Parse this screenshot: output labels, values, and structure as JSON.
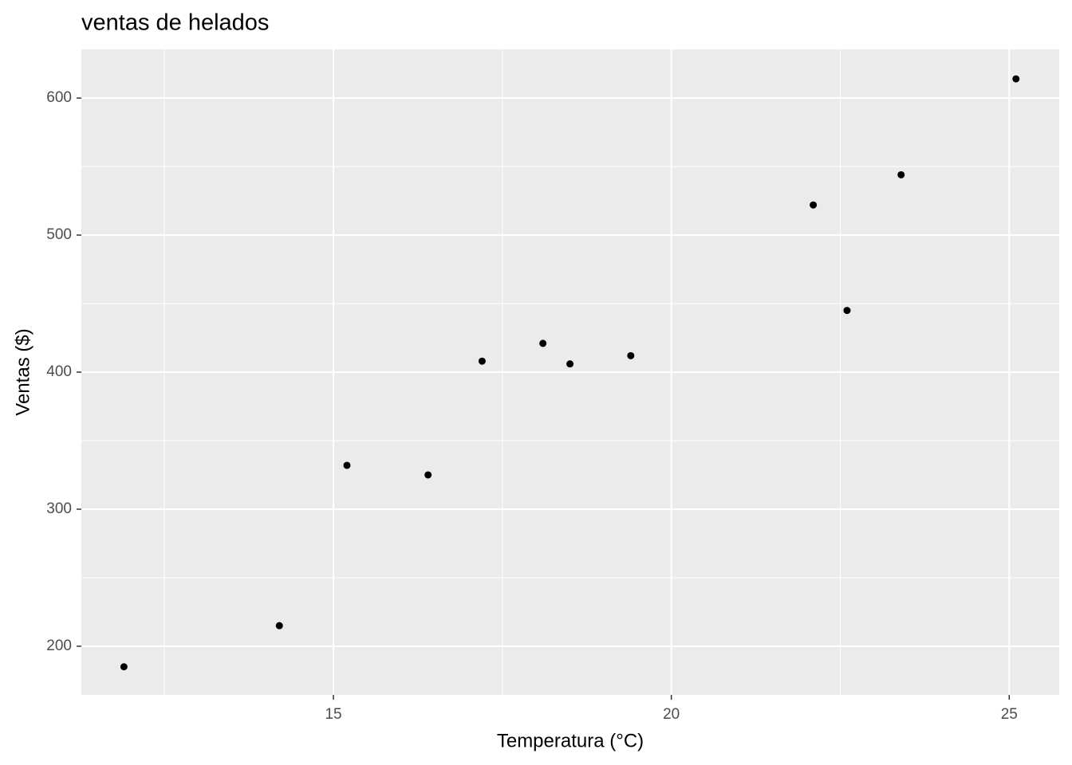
{
  "chart_data": {
    "type": "scatter",
    "title": "ventas de helados",
    "x_label": "Temperatura (°C)",
    "y_label": "Ventas ($)",
    "series": [
      {
        "color": "#000000",
        "x": [
          11.9,
          14.2,
          15.2,
          16.4,
          17.2,
          18.1,
          18.5,
          19.4,
          22.1,
          22.6,
          23.4,
          25.1
        ],
        "values": [
          185,
          215,
          332,
          325,
          408,
          421,
          406,
          412,
          522,
          445,
          544,
          614
        ]
      }
    ],
    "xlim": [
      11.27,
      25.74
    ],
    "xticks": [
      15,
      20,
      25
    ],
    "x_minor_ticks": [
      12.5,
      17.5,
      22.5
    ],
    "ylim": [
      164.5,
      635.5
    ],
    "yticks": [
      200,
      300,
      400,
      500,
      600
    ],
    "y_minor_ticks": [
      250,
      350,
      450,
      550
    ],
    "grid": true
  }
}
